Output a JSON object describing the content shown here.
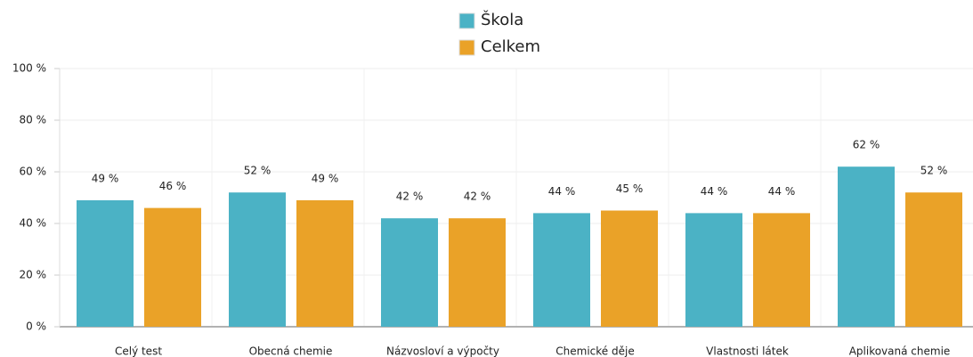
{
  "chart_data": {
    "type": "bar",
    "categories": [
      "Celý test",
      "Obecná chemie",
      "Názvosloví a výpočty",
      "Chemické děje",
      "Vlastnosti látek",
      "Aplikovaná chemie"
    ],
    "series": [
      {
        "name": "Škola",
        "color": "#4bb2c5",
        "values": [
          49,
          52,
          42,
          44,
          44,
          62
        ],
        "value_labels": [
          "49 %",
          "52 %",
          "42 %",
          "44 %",
          "44 %",
          "62 %"
        ]
      },
      {
        "name": "Celkem",
        "color": "#eaa228",
        "values": [
          46,
          49,
          42,
          45,
          44,
          52
        ],
        "value_labels": [
          "46 %",
          "49 %",
          "42 %",
          "45 %",
          "44 %",
          "52 %"
        ]
      }
    ],
    "ylim": [
      0,
      100
    ],
    "yticks": [
      {
        "value": 0,
        "label": "0 %"
      },
      {
        "value": 20,
        "label": "20 %"
      },
      {
        "value": 40,
        "label": "40 %"
      },
      {
        "value": 60,
        "label": "60 %"
      },
      {
        "value": 80,
        "label": "80 %"
      },
      {
        "value": 100,
        "label": "100 %"
      }
    ],
    "grid": true,
    "legend": "top"
  }
}
